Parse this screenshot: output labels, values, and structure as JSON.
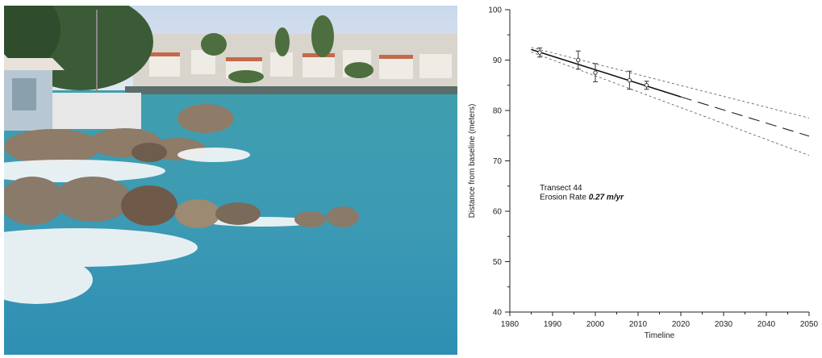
{
  "chart_data": {
    "type": "line",
    "xlabel": "Timeline",
    "ylabel": "Distance from baseline (meters)",
    "xlim": [
      1980,
      2050
    ],
    "ylim": [
      40,
      100
    ],
    "x_ticks": [
      1980,
      1990,
      2000,
      2010,
      2020,
      2030,
      2040,
      2050
    ],
    "y_ticks": [
      40,
      50,
      60,
      70,
      80,
      90,
      100
    ],
    "grid": false,
    "annotations": {
      "transect": "Transect 44",
      "rate_label": "Erosion Rate",
      "rate_value": "0.27 m/yr"
    },
    "points": [
      {
        "x": 1987,
        "y": 91.5,
        "err": 0.9
      },
      {
        "x": 1996,
        "y": 90.0,
        "err": 1.8
      },
      {
        "x": 2000,
        "y": 87.5,
        "err": 1.8
      },
      {
        "x": 2008,
        "y": 86.0,
        "err": 1.8
      },
      {
        "x": 2012,
        "y": 85.0,
        "err": 0.8
      }
    ],
    "series": [
      {
        "style": "solid",
        "x": [
          1985,
          2020
        ],
        "y": [
          92.1,
          82.7
        ]
      },
      {
        "style": "long-dash",
        "x": [
          2020,
          2050
        ],
        "y": [
          82.7,
          74.9
        ]
      },
      {
        "style": "short-dash",
        "x": [
          1985,
          2050
        ],
        "y": [
          92.5,
          78.5
        ]
      },
      {
        "style": "short-dash",
        "x": [
          1985,
          2050
        ],
        "y": [
          91.6,
          71.1
        ]
      }
    ]
  }
}
